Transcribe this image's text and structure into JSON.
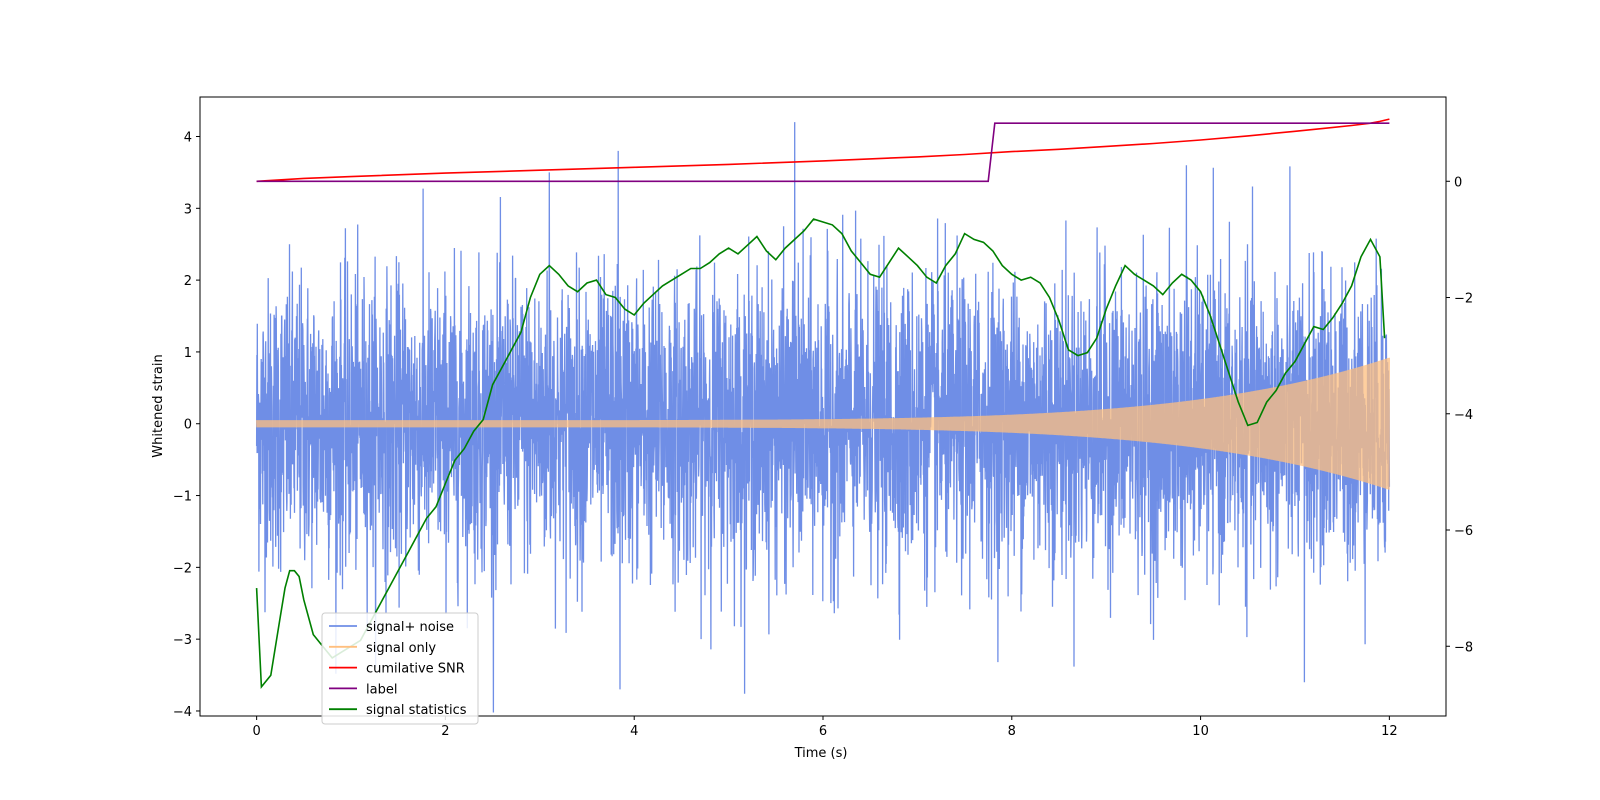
{
  "chart_data": {
    "type": "line",
    "xlabel": "Time (s)",
    "ylabel": "Whitened strain",
    "y2label": "",
    "xlim": [
      -0.6,
      12.6
    ],
    "ylim": [
      -4.07,
      4.55
    ],
    "y2lim": [
      -9.2,
      1.45
    ],
    "x_ticks": [
      0,
      2,
      4,
      6,
      8,
      10,
      12
    ],
    "y_ticks": [
      -4,
      -3,
      -2,
      -1,
      0,
      1,
      2,
      3,
      4
    ],
    "y2_ticks": [
      -8,
      -6,
      -4,
      -2,
      0
    ],
    "legend_position": "lower-left",
    "series": [
      {
        "name": "signal+ noise",
        "color": "#6f8ee6",
        "axis": "left",
        "kind": "noise",
        "x_range": [
          0,
          12
        ],
        "spread": 1.0,
        "peaks": [
          [
            3.85,
            -3.7
          ],
          [
            5.7,
            4.2
          ],
          [
            11.1,
            -3.6
          ],
          [
            3.83,
            3.8
          ],
          [
            3.1,
            3.5
          ],
          [
            9.85,
            3.6
          ]
        ]
      },
      {
        "name": "signal only",
        "color": "#ffbf7f",
        "axis": "left",
        "kind": "chirp",
        "x_range": [
          0,
          12
        ],
        "amplitude_start": 0.05,
        "amplitude_end": 0.92
      },
      {
        "name": "cumilative SNR",
        "color": "#ff0000",
        "axis": "right",
        "x": [
          0,
          0.5,
          1,
          2,
          3,
          4,
          5,
          6,
          7,
          7.5,
          8,
          8.5,
          9,
          9.5,
          10,
          10.5,
          11,
          11.3,
          11.6,
          11.8,
          11.9,
          12
        ],
        "y": [
          0,
          0.05,
          0.08,
          0.14,
          0.19,
          0.24,
          0.29,
          0.35,
          0.42,
          0.46,
          0.51,
          0.55,
          0.6,
          0.65,
          0.71,
          0.78,
          0.86,
          0.91,
          0.96,
          1.0,
          1.03,
          1.07
        ]
      },
      {
        "name": "label",
        "color": "#800080",
        "axis": "right",
        "x": [
          0,
          7.75,
          7.82,
          12
        ],
        "y": [
          0,
          0,
          1,
          1
        ]
      },
      {
        "name": "signal statistics",
        "color": "#008000",
        "axis": "right",
        "x": [
          0,
          0.05,
          0.15,
          0.25,
          0.3,
          0.35,
          0.4,
          0.45,
          0.5,
          0.6,
          0.7,
          0.8,
          0.9,
          1.0,
          1.1,
          1.2,
          1.3,
          1.4,
          1.5,
          1.6,
          1.7,
          1.8,
          1.9,
          2.0,
          2.1,
          2.2,
          2.3,
          2.4,
          2.5,
          2.6,
          2.7,
          2.8,
          2.9,
          3.0,
          3.1,
          3.2,
          3.3,
          3.4,
          3.5,
          3.6,
          3.7,
          3.8,
          3.9,
          4.0,
          4.1,
          4.2,
          4.3,
          4.4,
          4.5,
          4.6,
          4.7,
          4.8,
          4.9,
          5.0,
          5.1,
          5.2,
          5.3,
          5.4,
          5.5,
          5.6,
          5.7,
          5.8,
          5.9,
          6.0,
          6.1,
          6.2,
          6.3,
          6.4,
          6.5,
          6.6,
          6.7,
          6.8,
          6.9,
          7.0,
          7.1,
          7.2,
          7.3,
          7.4,
          7.5,
          7.6,
          7.7,
          7.8,
          7.9,
          8.0,
          8.1,
          8.2,
          8.3,
          8.4,
          8.5,
          8.6,
          8.7,
          8.8,
          8.9,
          9.0,
          9.1,
          9.2,
          9.3,
          9.4,
          9.5,
          9.6,
          9.7,
          9.8,
          9.9,
          10.0,
          10.1,
          10.2,
          10.3,
          10.4,
          10.5,
          10.6,
          10.7,
          10.8,
          10.9,
          11.0,
          11.1,
          11.2,
          11.3,
          11.4,
          11.5,
          11.6,
          11.7,
          11.8,
          11.9,
          11.95
        ],
        "y": [
          -7.0,
          -8.7,
          -8.5,
          -7.5,
          -7.0,
          -6.7,
          -6.7,
          -6.8,
          -7.2,
          -7.8,
          -8.0,
          -8.2,
          -8.1,
          -8.0,
          -7.9,
          -7.6,
          -7.3,
          -7.0,
          -6.7,
          -6.4,
          -6.1,
          -5.8,
          -5.6,
          -5.2,
          -4.8,
          -4.6,
          -4.3,
          -4.1,
          -3.5,
          -3.2,
          -2.9,
          -2.6,
          -2.0,
          -1.6,
          -1.45,
          -1.6,
          -1.8,
          -1.9,
          -1.75,
          -1.7,
          -1.95,
          -2.0,
          -2.2,
          -2.3,
          -2.1,
          -1.95,
          -1.8,
          -1.7,
          -1.6,
          -1.5,
          -1.5,
          -1.4,
          -1.25,
          -1.15,
          -1.25,
          -1.1,
          -0.95,
          -1.2,
          -1.35,
          -1.15,
          -1.0,
          -0.85,
          -0.65,
          -0.7,
          -0.75,
          -0.9,
          -1.2,
          -1.4,
          -1.6,
          -1.65,
          -1.4,
          -1.15,
          -1.3,
          -1.45,
          -1.65,
          -1.75,
          -1.45,
          -1.25,
          -0.9,
          -1.0,
          -1.05,
          -1.2,
          -1.45,
          -1.6,
          -1.7,
          -1.65,
          -1.75,
          -2.0,
          -2.4,
          -2.9,
          -3.0,
          -2.95,
          -2.7,
          -2.2,
          -1.8,
          -1.45,
          -1.6,
          -1.7,
          -1.8,
          -1.95,
          -1.75,
          -1.6,
          -1.7,
          -1.9,
          -2.3,
          -2.8,
          -3.3,
          -3.8,
          -4.2,
          -4.15,
          -3.8,
          -3.6,
          -3.3,
          -3.1,
          -2.8,
          -2.5,
          -2.55,
          -2.35,
          -2.1,
          -1.8,
          -1.3,
          -1.0,
          -1.3,
          -2.7
        ]
      }
    ]
  }
}
